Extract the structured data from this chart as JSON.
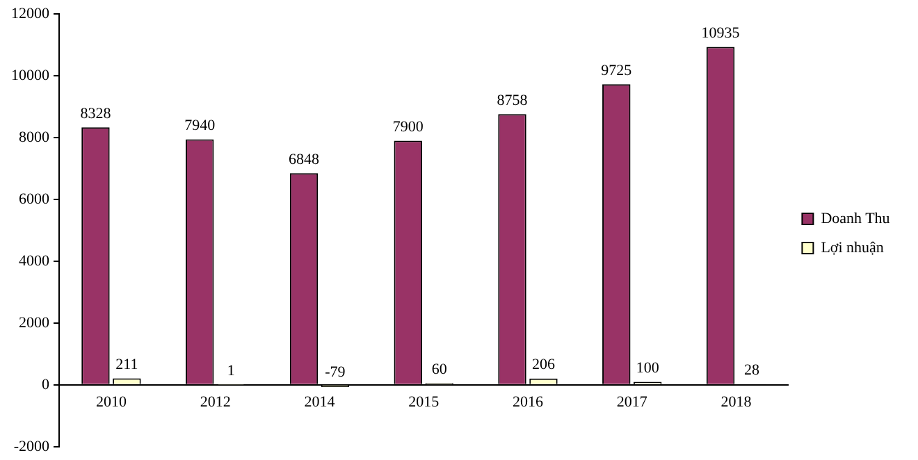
{
  "chart_data": {
    "type": "bar",
    "categories": [
      "2010",
      "2012",
      "2014",
      "2015",
      "2016",
      "2017",
      "2018"
    ],
    "series": [
      {
        "name": "Doanh Thu",
        "color": "#993366",
        "values": [
          8328,
          7940,
          6848,
          7900,
          8758,
          9725,
          10935
        ]
      },
      {
        "name": "Lợi nhuận",
        "color": "#ffffcc",
        "values": [
          211,
          1,
          -79,
          60,
          206,
          100,
          28
        ]
      }
    ],
    "ylim": [
      -2000,
      12000
    ],
    "yticks": [
      -2000,
      0,
      2000,
      4000,
      6000,
      8000,
      10000,
      12000
    ],
    "grid": false,
    "legend": "right",
    "data_labels": true
  }
}
